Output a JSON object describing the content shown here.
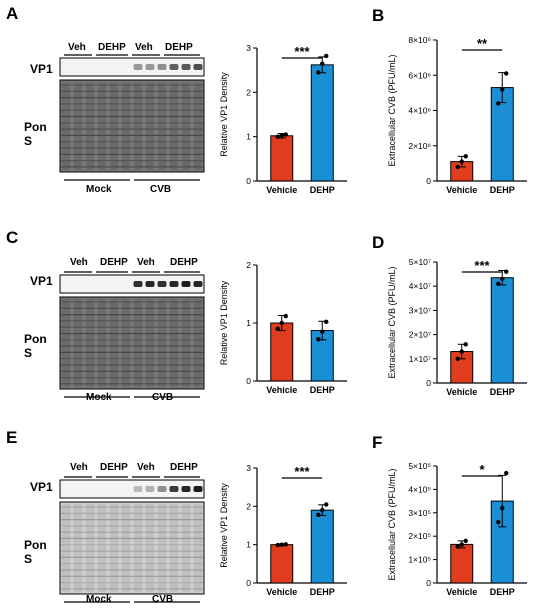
{
  "panels": [
    {
      "letter": "A",
      "blot": {
        "top_groups": [
          "Veh",
          "DEHP",
          "Veh",
          "DEHP"
        ],
        "bottom_groups": [
          "Mock",
          "CVB"
        ],
        "rows": [
          "VP1",
          "Pon S"
        ],
        "vp1_intensity": [
          0,
          0,
          0,
          0,
          0,
          0,
          0.25,
          0.25,
          0.3,
          0.55,
          0.6,
          0.65
        ]
      },
      "chart_data": {
        "type": "bar",
        "categories": [
          "Vehicle",
          "DEHP"
        ],
        "values": [
          1.02,
          2.62
        ],
        "errors": [
          0.05,
          0.18
        ],
        "points": [
          [
            1.0,
            1.03,
            1.05
          ],
          [
            2.45,
            2.65,
            2.82
          ]
        ],
        "colors": [
          "#e03d1f",
          "#1a8fd6"
        ],
        "ylabel": "Relative VP1 Density",
        "ylim": [
          0,
          3
        ],
        "yticks": [
          "0",
          "1",
          "2",
          "3"
        ],
        "significance": "***"
      }
    },
    {
      "letter": "B",
      "chart_data": {
        "type": "bar",
        "categories": [
          "Vehicle",
          "DEHP"
        ],
        "values": [
          1.1,
          5.3
        ],
        "errors": [
          0.3,
          0.85
        ],
        "points": [
          [
            0.8,
            1.1,
            1.4
          ],
          [
            4.4,
            5.2,
            6.1
          ]
        ],
        "colors": [
          "#e03d1f",
          "#1a8fd6"
        ],
        "ylabel": "Extracellular CVB (PFU/mL)",
        "ylim": [
          0,
          8
        ],
        "yticks": [
          "0",
          "2×10⁶",
          "4×10⁶",
          "6×10⁶",
          "8×10⁶"
        ],
        "significance": "**"
      }
    },
    {
      "letter": "C",
      "blot": {
        "top_groups": [
          "Veh",
          "DEHP",
          "Veh",
          "DEHP"
        ],
        "bottom_groups": [
          "Mock",
          "CVB"
        ],
        "rows": [
          "VP1",
          "Pon S"
        ],
        "vp1_intensity": [
          0,
          0,
          0,
          0,
          0,
          0,
          0.8,
          0.85,
          0.8,
          0.85,
          0.9,
          0.85
        ]
      },
      "chart_data": {
        "type": "bar",
        "categories": [
          "Vehicle",
          "DEHP"
        ],
        "values": [
          1.0,
          0.87
        ],
        "errors": [
          0.13,
          0.16
        ],
        "points": [
          [
            0.9,
            1.0,
            1.12
          ],
          [
            0.72,
            0.85,
            1.02
          ]
        ],
        "colors": [
          "#e03d1f",
          "#1a8fd6"
        ],
        "ylabel": "Relative VP1 Density",
        "ylim": [
          0,
          2
        ],
        "yticks": [
          "0",
          "1",
          "2"
        ],
        "significance": ""
      }
    },
    {
      "letter": "D",
      "chart_data": {
        "type": "bar",
        "categories": [
          "Vehicle",
          "DEHP"
        ],
        "values": [
          1.3,
          4.35
        ],
        "errors": [
          0.3,
          0.3
        ],
        "points": [
          [
            1.0,
            1.3,
            1.6
          ],
          [
            4.1,
            4.3,
            4.6
          ]
        ],
        "colors": [
          "#e03d1f",
          "#1a8fd6"
        ],
        "ylabel": "Extracellular CVB (PFU/mL)",
        "ylim": [
          0,
          5
        ],
        "yticks": [
          "0",
          "1×10⁷",
          "2×10⁷",
          "3×10⁷",
          "4×10⁷",
          "5×10⁷"
        ],
        "significance": "***"
      }
    },
    {
      "letter": "E",
      "blot": {
        "top_groups": [
          "Veh",
          "DEHP",
          "Veh",
          "DEHP"
        ],
        "bottom_groups": [
          "Mock",
          "CVB"
        ],
        "rows": [
          "VP1",
          "Pon S"
        ],
        "vp1_intensity": [
          0,
          0,
          0,
          0,
          0,
          0,
          0.08,
          0.12,
          0.3,
          0.75,
          0.85,
          0.9
        ]
      },
      "chart_data": {
        "type": "bar",
        "categories": [
          "Vehicle",
          "DEHP"
        ],
        "values": [
          1.0,
          1.9
        ],
        "errors": [
          0.02,
          0.14
        ],
        "points": [
          [
            0.99,
            1.0,
            1.01
          ],
          [
            1.78,
            1.9,
            2.05
          ]
        ],
        "colors": [
          "#e03d1f",
          "#1a8fd6"
        ],
        "ylabel": "Relative VP1 Density",
        "ylim": [
          0,
          3
        ],
        "yticks": [
          "0",
          "1",
          "2",
          "3"
        ],
        "significance": "***"
      }
    },
    {
      "letter": "F",
      "chart_data": {
        "type": "bar",
        "categories": [
          "Vehicle",
          "DEHP"
        ],
        "values": [
          1.65,
          3.5
        ],
        "errors": [
          0.15,
          1.1
        ],
        "points": [
          [
            1.55,
            1.65,
            1.8
          ],
          [
            2.6,
            3.2,
            4.7
          ]
        ],
        "colors": [
          "#e03d1f",
          "#1a8fd6"
        ],
        "ylabel": "Extracellular CVB (PFU/mL)",
        "ylim": [
          0,
          5
        ],
        "yticks": [
          "0",
          "1×10⁵",
          "2×10⁵",
          "3×10⁵",
          "4×10⁵",
          "5×10⁵"
        ],
        "significance": "*"
      }
    }
  ]
}
